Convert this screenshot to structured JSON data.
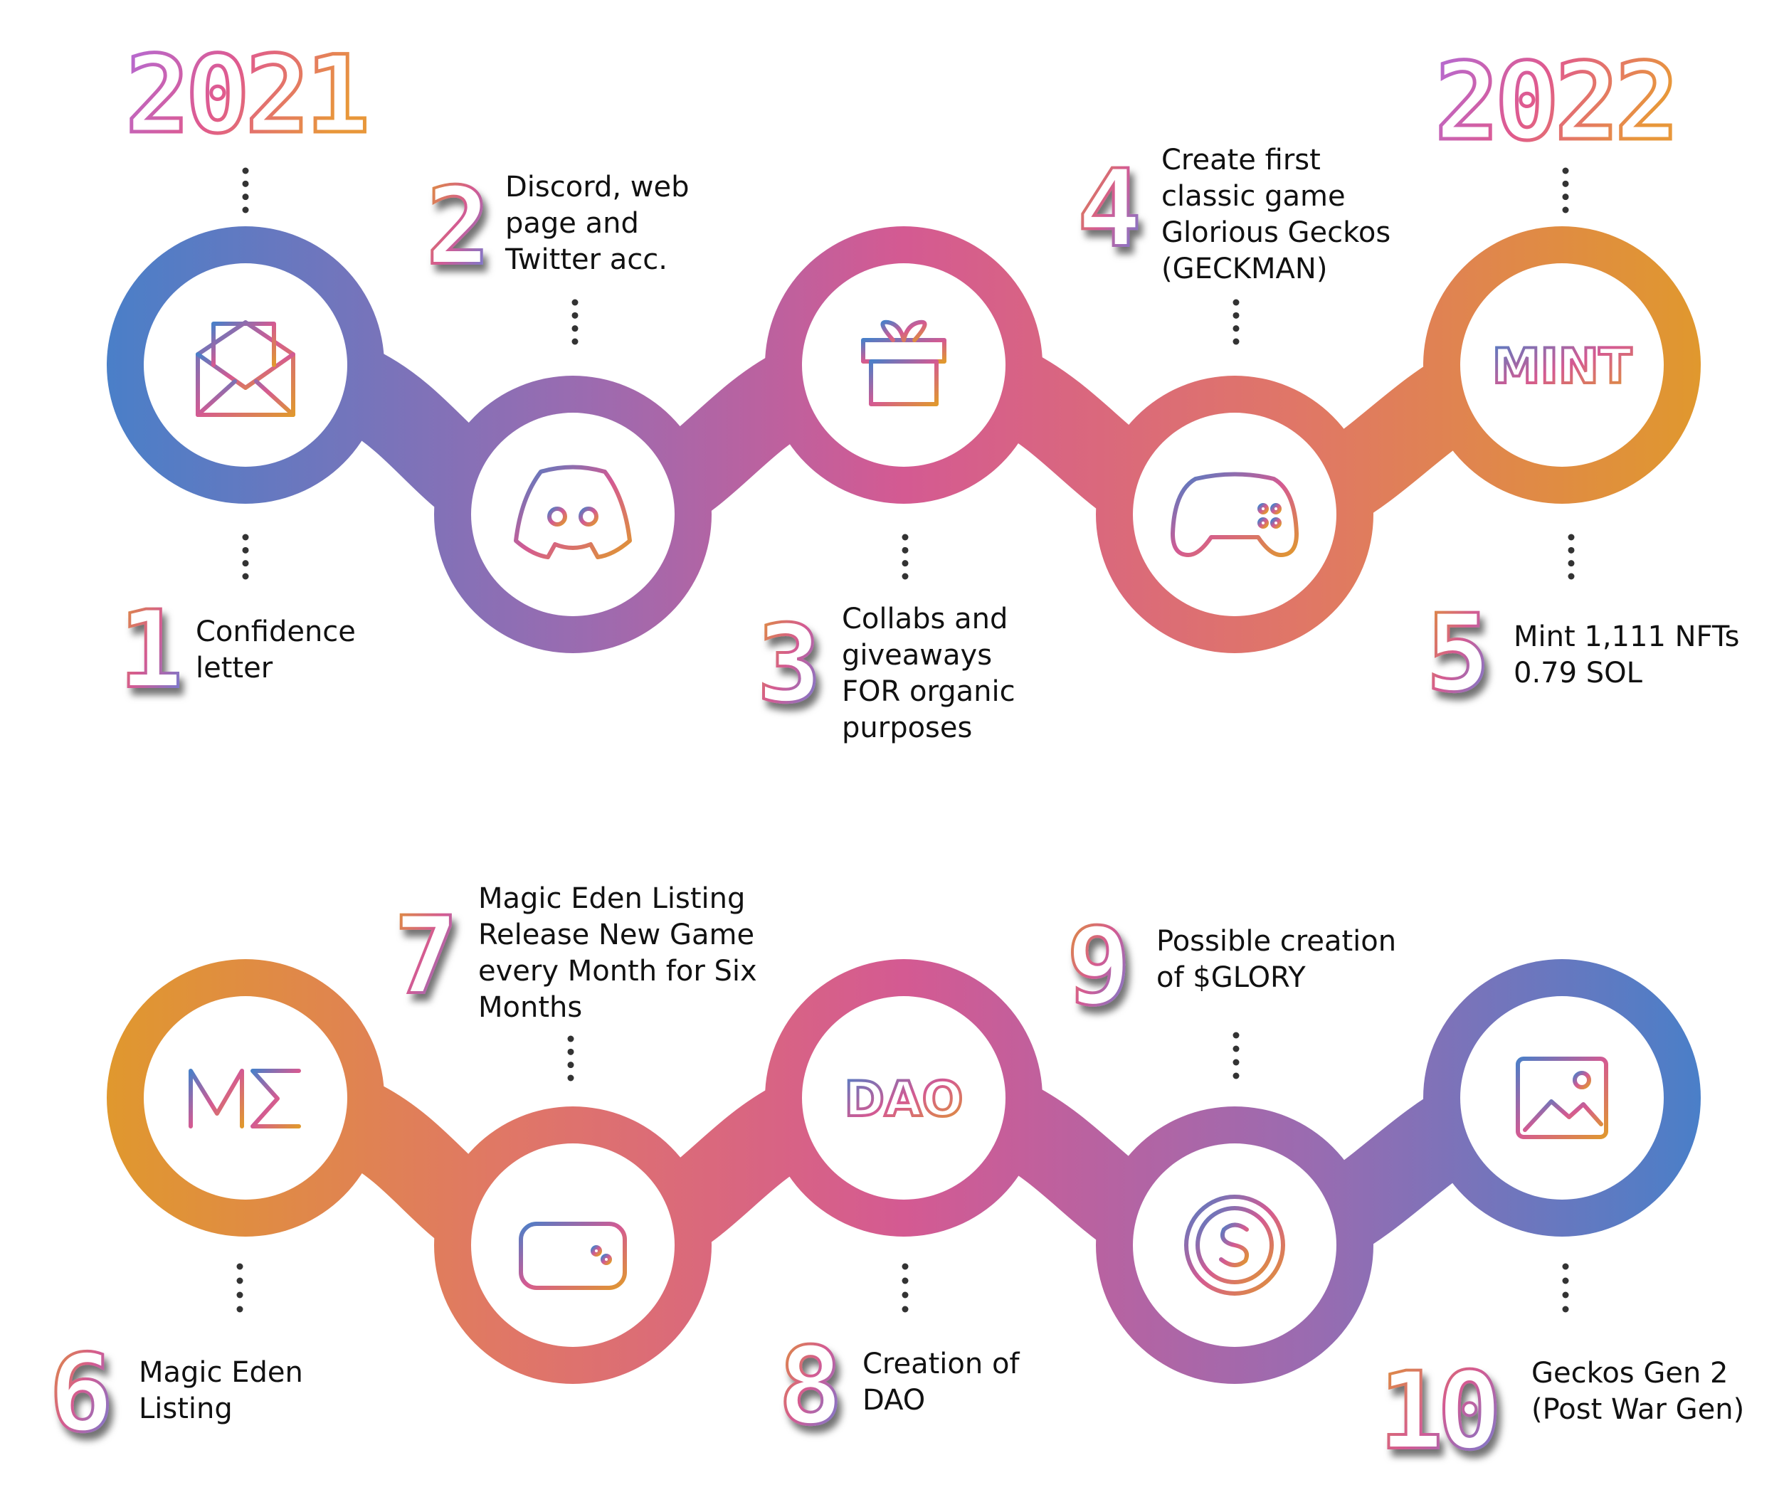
{
  "years": {
    "left": "2021",
    "right": "2022"
  },
  "colors": {
    "blue": "#4a7fc8",
    "purple": "#9b6bb0",
    "pink": "#d45a92",
    "coral": "#e07766",
    "orange": "#e0982e",
    "text": "#111111"
  },
  "steps": [
    {
      "number": "1",
      "lines": [
        "Confidence",
        "letter"
      ],
      "icon": "envelope-letter-icon"
    },
    {
      "number": "2",
      "lines": [
        "Discord, web",
        "page and",
        "Twitter acc."
      ],
      "icon": "discord-icon"
    },
    {
      "number": "3",
      "lines": [
        "Collabs and",
        "giveaways",
        "FOR organic",
        "purposes"
      ],
      "icon": "gift-icon"
    },
    {
      "number": "4",
      "lines": [
        "Create first",
        "classic game",
        "Glorious Geckos",
        "(GECKMAN)"
      ],
      "icon": "gamepad-icon"
    },
    {
      "number": "5",
      "lines": [
        "Mint 1,111 NFTs",
        "0.79 SOL"
      ],
      "icon": "mint-icon",
      "icon_text": "MINT"
    },
    {
      "number": "6",
      "lines": [
        "Magic Eden",
        "Listing"
      ],
      "icon": "magic-eden-icon"
    },
    {
      "number": "7",
      "lines": [
        "Magic Eden Listing",
        "Release New Game",
        "every Month for Six",
        "Months"
      ],
      "icon": "retro-controller-icon"
    },
    {
      "number": "8",
      "lines": [
        "Creation of",
        "DAO"
      ],
      "icon": "dao-icon",
      "icon_text": "DAO"
    },
    {
      "number": "9",
      "lines": [
        "Possible creation",
        "of $GLORY"
      ],
      "icon": "coin-dollar-icon"
    },
    {
      "number": "10",
      "lines": [
        "Geckos Gen 2",
        "(Post War Gen)"
      ],
      "icon": "image-icon"
    }
  ]
}
